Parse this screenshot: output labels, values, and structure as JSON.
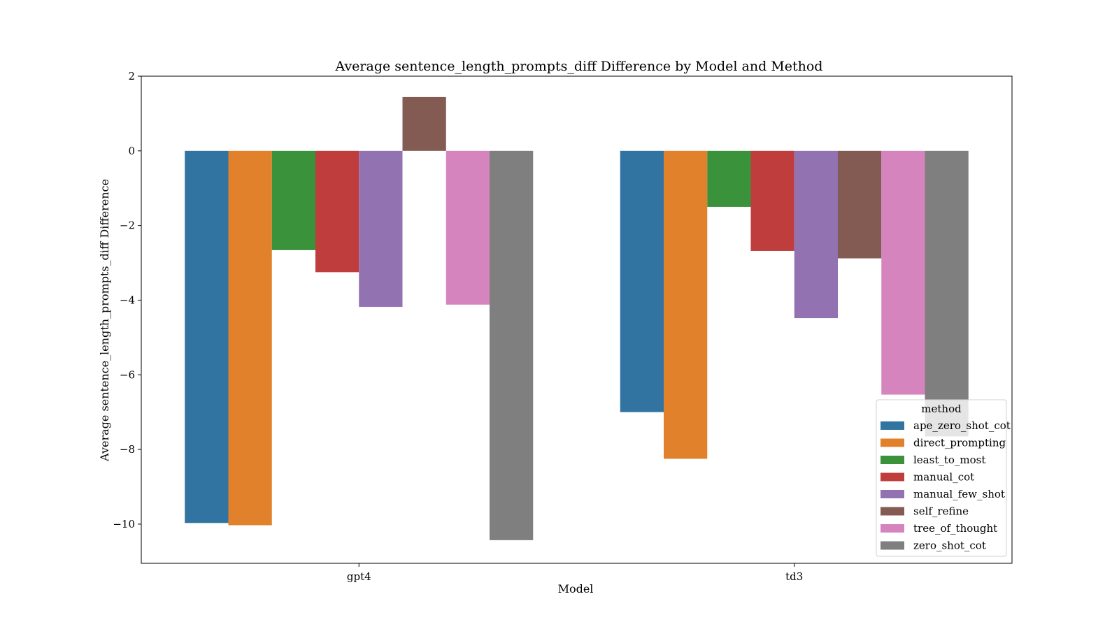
{
  "chart_data": {
    "type": "bar",
    "title": "Average sentence_length_prompts_diff Difference by Model and Method",
    "xlabel": "Model",
    "ylabel": "Average sentence_length_prompts_diff Difference",
    "categories": [
      "gpt4",
      "td3"
    ],
    "ylim": [
      -11.05,
      2.0
    ],
    "yticks": [
      2,
      0,
      -2,
      -4,
      -6,
      -8,
      -10
    ],
    "ytick_labels": [
      "2",
      "0",
      "−2",
      "−4",
      "−6",
      "−8",
      "−10"
    ],
    "grid": false,
    "legend": {
      "title": "method",
      "placement": "bottom-right"
    },
    "series": [
      {
        "name": "ape_zero_shot_cot",
        "color": "#3274a1",
        "values": [
          -9.97,
          -7.0
        ]
      },
      {
        "name": "direct_prompting",
        "color": "#e1812c",
        "values": [
          -10.03,
          -8.25
        ]
      },
      {
        "name": "least_to_most",
        "color": "#3a923a",
        "values": [
          -2.66,
          -1.5
        ]
      },
      {
        "name": "manual_cot",
        "color": "#c03d3e",
        "values": [
          -3.25,
          -2.68
        ]
      },
      {
        "name": "manual_few_shot",
        "color": "#9372b2",
        "values": [
          -4.18,
          -4.48
        ]
      },
      {
        "name": "self_refine",
        "color": "#845b53",
        "values": [
          1.44,
          -2.88
        ]
      },
      {
        "name": "tree_of_thought",
        "color": "#d684bd",
        "values": [
          -4.12,
          -6.53
        ]
      },
      {
        "name": "zero_shot_cot",
        "color": "#7f7f7f",
        "values": [
          -10.43,
          -7.65
        ]
      }
    ]
  }
}
